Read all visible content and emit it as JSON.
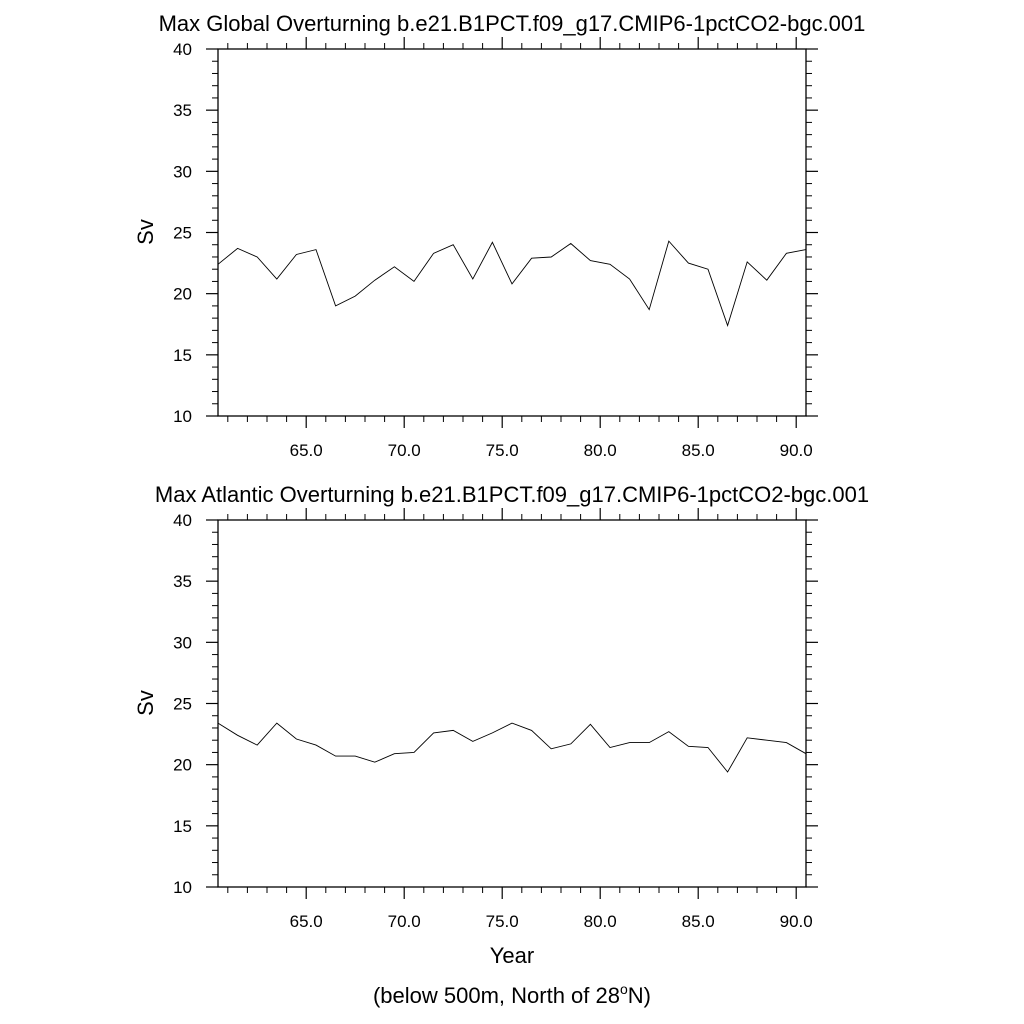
{
  "chart_data": [
    {
      "type": "line",
      "title": "Max Global Overturning b.e21.B1PCT.f09_g17.CMIP6-1pctCO2-bgc.001",
      "xlabel": "",
      "ylabel": "Sv",
      "xlim": [
        60.5,
        90.5
      ],
      "ylim": [
        10,
        40
      ],
      "xticks": [
        65.0,
        70.0,
        75.0,
        80.0,
        85.0,
        90.0
      ],
      "xtick_labels": [
        "65.0",
        "70.0",
        "75.0",
        "80.0",
        "85.0",
        "90.0"
      ],
      "yticks": [
        10,
        15,
        20,
        25,
        30,
        35,
        40
      ],
      "ytick_labels": [
        "10",
        "15",
        "20",
        "25",
        "30",
        "35",
        "40"
      ],
      "grid": false,
      "x": [
        60.5,
        61.5,
        62.5,
        63.5,
        64.5,
        65.5,
        66.5,
        67.5,
        68.5,
        69.5,
        70.5,
        71.5,
        72.5,
        73.5,
        74.5,
        75.5,
        76.5,
        77.5,
        78.5,
        79.5,
        80.5,
        81.5,
        82.5,
        83.5,
        84.5,
        85.5,
        86.5,
        87.5,
        88.5,
        89.5,
        90.5
      ],
      "series": [
        {
          "values": [
            22.4,
            23.7,
            23.0,
            21.2,
            23.2,
            23.6,
            19.0,
            19.8,
            21.1,
            22.2,
            21.0,
            23.3,
            24.0,
            21.2,
            24.2,
            20.8,
            22.9,
            23.0,
            24.1,
            22.7,
            22.4,
            21.2,
            18.7,
            24.3,
            22.5,
            22.0,
            17.4,
            22.6,
            21.1,
            23.3,
            23.6
          ]
        }
      ]
    },
    {
      "type": "line",
      "title": "Max Atlantic Overturning b.e21.B1PCT.f09_g17.CMIP6-1pctCO2-bgc.001",
      "xlabel": "Year",
      "ylabel": "Sv",
      "xlim": [
        60.5,
        90.5
      ],
      "ylim": [
        10,
        40
      ],
      "xticks": [
        65.0,
        70.0,
        75.0,
        80.0,
        85.0,
        90.0
      ],
      "xtick_labels": [
        "65.0",
        "70.0",
        "75.0",
        "80.0",
        "85.0",
        "90.0"
      ],
      "yticks": [
        10,
        15,
        20,
        25,
        30,
        35,
        40
      ],
      "ytick_labels": [
        "10",
        "15",
        "20",
        "25",
        "30",
        "35",
        "40"
      ],
      "grid": false,
      "x": [
        60.5,
        61.5,
        62.5,
        63.5,
        64.5,
        65.5,
        66.5,
        67.5,
        68.5,
        69.5,
        70.5,
        71.5,
        72.5,
        73.5,
        74.5,
        75.5,
        76.5,
        77.5,
        78.5,
        79.5,
        80.5,
        81.5,
        82.5,
        83.5,
        84.5,
        85.5,
        86.5,
        87.5,
        88.5,
        89.5,
        90.5
      ],
      "series": [
        {
          "values": [
            23.4,
            22.4,
            21.6,
            23.4,
            22.1,
            21.6,
            20.7,
            20.7,
            20.2,
            20.9,
            21.0,
            22.6,
            22.8,
            21.9,
            22.6,
            23.4,
            22.8,
            21.3,
            21.7,
            23.3,
            21.4,
            21.8,
            21.8,
            22.7,
            21.5,
            21.4,
            19.4,
            22.2,
            22.0,
            21.8,
            20.9
          ]
        }
      ]
    }
  ],
  "footnote": {
    "prefix": "(below 500m, North of 28",
    "superscript": "o",
    "suffix": "N)"
  },
  "colors": {
    "line": "#000000",
    "axes": "#000000",
    "background": "#ffffff"
  }
}
